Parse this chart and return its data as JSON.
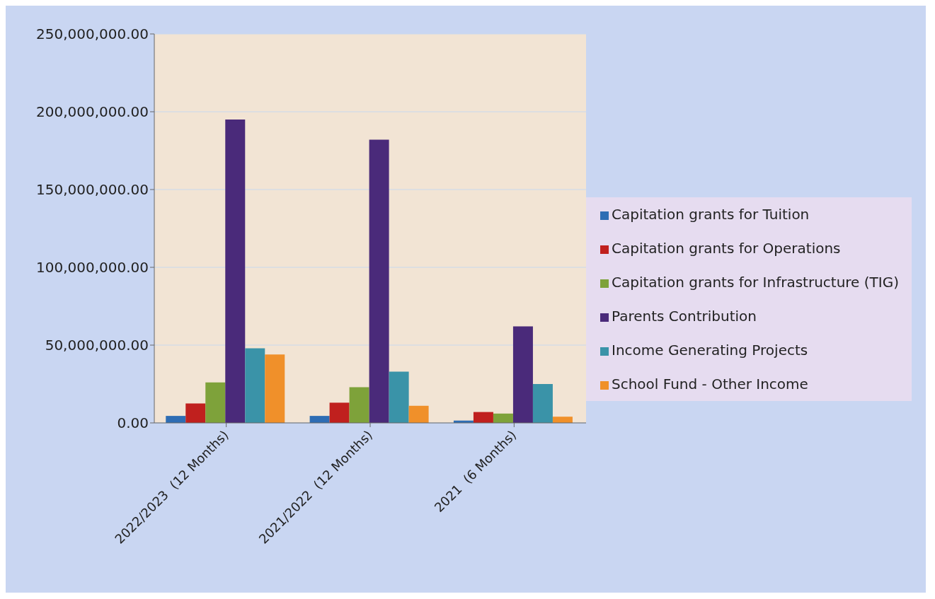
{
  "chart_data": {
    "type": "bar",
    "categories": [
      "2022/2023  (12 Months)",
      "2021/2022  (12 Months)",
      "2021  (6 Months)"
    ],
    "series": [
      {
        "name": "Capitation grants for Tuition",
        "color": "#2e6db4",
        "values": [
          4500000,
          4500000,
          1500000
        ]
      },
      {
        "name": "Capitation grants for Operations",
        "color": "#c0201e",
        "values": [
          12500000,
          13000000,
          7000000
        ]
      },
      {
        "name": "Capitation grants for Infrastructure (TIG)",
        "color": "#7ea23a",
        "values": [
          26000000,
          23000000,
          6000000
        ]
      },
      {
        "name": "Parents Contribution",
        "color": "#4a2a7a",
        "values": [
          195000000,
          182000000,
          62000000
        ]
      },
      {
        "name": "Income Generating Projects",
        "color": "#3a93a8",
        "values": [
          48000000,
          33000000,
          25000000
        ]
      },
      {
        "name": "School Fund - Other Income",
        "color": "#f0902a",
        "values": [
          44000000,
          11000000,
          4000000
        ]
      }
    ],
    "ylim": [
      0,
      250000000
    ],
    "yticks": [
      {
        "value": 0,
        "label": "0.00"
      },
      {
        "value": 50000000,
        "label": "50,000,000.00"
      },
      {
        "value": 100000000,
        "label": "100,000,000.00"
      },
      {
        "value": 150000000,
        "label": "150,000,000.00"
      },
      {
        "value": 200000000,
        "label": "200,000,000.00"
      },
      {
        "value": 250000000,
        "label": "250,000,000.00"
      }
    ],
    "grid": "y",
    "legend": "right"
  }
}
